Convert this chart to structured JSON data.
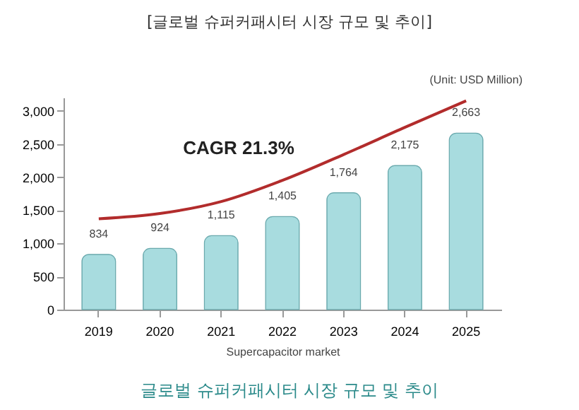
{
  "chart_data": {
    "type": "bar",
    "title": "[글로벌 슈퍼커패시터 시장 규모 및 추이]",
    "subtitle": "글로벌 슈퍼커패시터 시장 규모 및 추이",
    "xlabel": "Supercapacitor market",
    "annotations": [
      "(Unit: USD Million)",
      "CAGR 21.3%"
    ],
    "categories": [
      "2019",
      "2020",
      "2021",
      "2022",
      "2023",
      "2024",
      "2025"
    ],
    "series": [
      {
        "color": "#a8dcdf",
        "values": [
          834,
          924,
          1115,
          1405,
          1764,
          2175,
          2663
        ],
        "value_labels": [
          "834",
          "924",
          "1,115",
          "1,405",
          "1,764",
          "2,175",
          "2,663"
        ]
      },
      {
        "type": "line",
        "color": "#b22c2c",
        "values": [
          1370,
          1450,
          1630,
          1950,
          2340,
          2750,
          3150
        ]
      }
    ],
    "ylim": [
      0,
      3200
    ],
    "yticks": [
      0,
      {
        "value": 500,
        "label": "500"
      },
      {
        "value": 1000,
        "label": "1,000"
      },
      {
        "value": 1500,
        "label": "1,500"
      },
      {
        "value": 2000,
        "label": "2,000"
      },
      {
        "value": 2500,
        "label": "2,500"
      },
      {
        "value": 3000,
        "label": "3,000"
      }
    ],
    "grid": false
  }
}
